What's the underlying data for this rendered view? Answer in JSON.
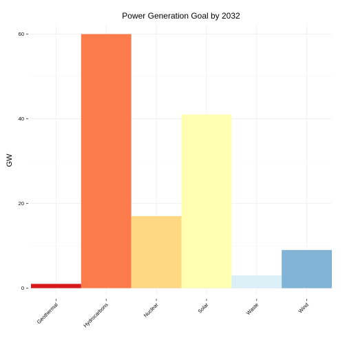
{
  "chart_data": {
    "type": "bar",
    "title": "Power Generation Goal by 2032",
    "xlabel": "",
    "ylabel": "GW",
    "categories": [
      "Geothermal",
      "Hydrocarbons",
      "Nuclear",
      "Solar",
      "Waste",
      "Wind"
    ],
    "values": [
      1,
      60,
      17,
      41,
      3,
      9
    ],
    "colors": [
      "#d7191c",
      "#fc7b4a",
      "#fed883",
      "#ffffb2",
      "#dbeff6",
      "#80b3d6"
    ],
    "ylim": [
      0,
      62
    ],
    "yticks": [
      0,
      20,
      40,
      60
    ],
    "grid": true,
    "legend": "none"
  }
}
